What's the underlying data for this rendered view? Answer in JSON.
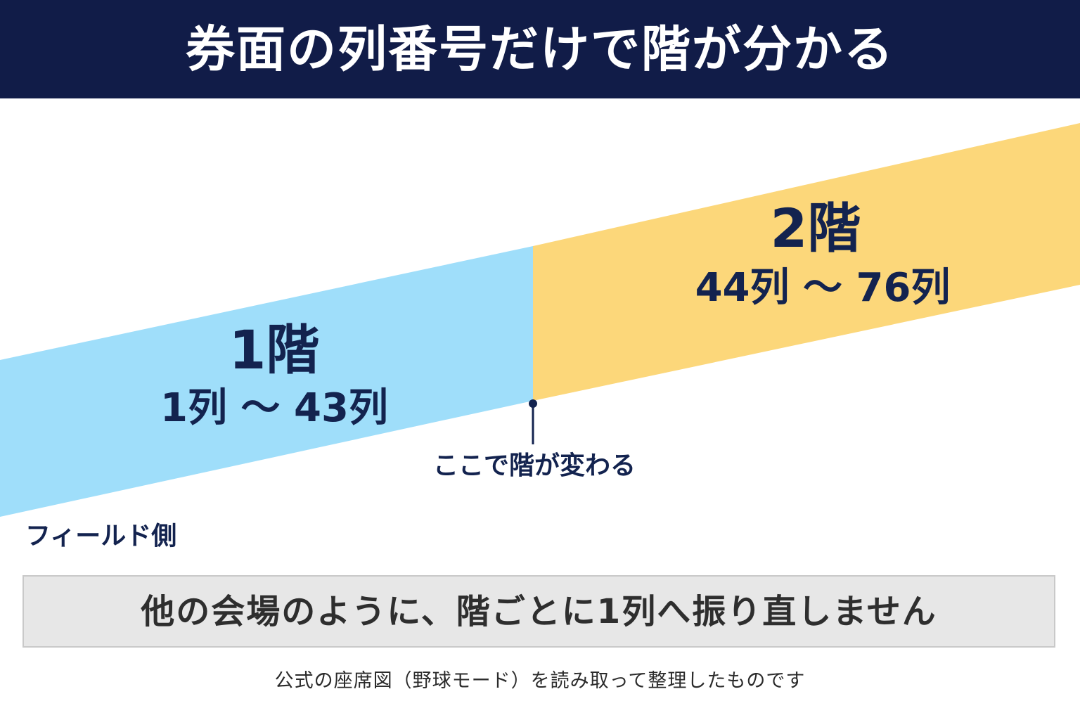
{
  "header": {
    "title": "券面の列番号だけで階が分かる"
  },
  "diagram": {
    "floors": [
      {
        "name": "1階",
        "range": "1列 ～ 43列",
        "color": "#9fdefa"
      },
      {
        "name": "2階",
        "range": "44列 ～ 76列",
        "color": "#fcd77a"
      }
    ],
    "boundary_label": "ここで階が変わる",
    "field_side_label": "フィールド側"
  },
  "note": {
    "text": "他の会場のように、階ごとに1列へ振り直しません"
  },
  "source": {
    "text": "公式の座席図（野球モード）を読み取って整理したものです"
  },
  "colors": {
    "header_bg": "#111c48",
    "text_dark": "#13234f",
    "note_bg": "#e7e7e7"
  }
}
